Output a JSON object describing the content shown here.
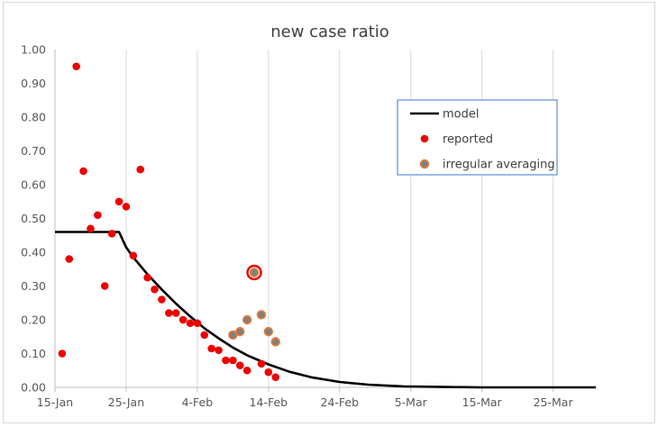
{
  "chart_data": {
    "type": "scatter",
    "title": "new case ratio",
    "xlabel": "",
    "ylabel": "",
    "x_range": [
      "2020-01-15",
      "2020-03-31"
    ],
    "ylim": [
      0,
      1
    ],
    "x_ticks": [
      {
        "date": "2020-01-15",
        "label": "15-Jan"
      },
      {
        "date": "2020-01-25",
        "label": "25-Jan"
      },
      {
        "date": "2020-02-04",
        "label": "4-Feb"
      },
      {
        "date": "2020-02-14",
        "label": "14-Feb"
      },
      {
        "date": "2020-02-24",
        "label": "24-Feb"
      },
      {
        "date": "2020-03-05",
        "label": "5-Mar"
      },
      {
        "date": "2020-03-15",
        "label": "15-Mar"
      },
      {
        "date": "2020-03-25",
        "label": "25-Mar"
      }
    ],
    "y_ticks": [
      "0.00",
      "0.10",
      "0.20",
      "0.30",
      "0.40",
      "0.50",
      "0.60",
      "0.70",
      "0.80",
      "0.90",
      "1.00"
    ],
    "grid": {
      "vertical": true,
      "horizontal": false
    },
    "legend_position": "top-right",
    "series": [
      {
        "name": "model",
        "kind": "line",
        "color": "#000000",
        "points": [
          {
            "x": "2020-01-15",
            "y": 0.46
          },
          {
            "x": "2020-01-24",
            "y": 0.46
          },
          {
            "x": "2020-01-25",
            "y": 0.415
          },
          {
            "x": "2020-01-26",
            "y": 0.385
          },
          {
            "x": "2020-01-28",
            "y": 0.335
          },
          {
            "x": "2020-01-30",
            "y": 0.29
          },
          {
            "x": "2020-02-01",
            "y": 0.248
          },
          {
            "x": "2020-02-03",
            "y": 0.21
          },
          {
            "x": "2020-02-05",
            "y": 0.175
          },
          {
            "x": "2020-02-07",
            "y": 0.145
          },
          {
            "x": "2020-02-09",
            "y": 0.118
          },
          {
            "x": "2020-02-11",
            "y": 0.095
          },
          {
            "x": "2020-02-14",
            "y": 0.068
          },
          {
            "x": "2020-02-17",
            "y": 0.046
          },
          {
            "x": "2020-02-20",
            "y": 0.03
          },
          {
            "x": "2020-02-24",
            "y": 0.016
          },
          {
            "x": "2020-02-28",
            "y": 0.008
          },
          {
            "x": "2020-03-04",
            "y": 0.003
          },
          {
            "x": "2020-03-10",
            "y": 0.001
          },
          {
            "x": "2020-03-15",
            "y": 0.0
          },
          {
            "x": "2020-03-31",
            "y": 0.0
          }
        ]
      },
      {
        "name": "reported",
        "kind": "scatter",
        "color": "#ee0000",
        "points": [
          {
            "x": "2020-01-16",
            "y": 0.1
          },
          {
            "x": "2020-01-17",
            "y": 0.38
          },
          {
            "x": "2020-01-18",
            "y": 0.95
          },
          {
            "x": "2020-01-19",
            "y": 0.64
          },
          {
            "x": "2020-01-20",
            "y": 0.47
          },
          {
            "x": "2020-01-21",
            "y": 0.51
          },
          {
            "x": "2020-01-22",
            "y": 0.3
          },
          {
            "x": "2020-01-23",
            "y": 0.455
          },
          {
            "x": "2020-01-24",
            "y": 0.55
          },
          {
            "x": "2020-01-25",
            "y": 0.535
          },
          {
            "x": "2020-01-26",
            "y": 0.39
          },
          {
            "x": "2020-01-27",
            "y": 0.645
          },
          {
            "x": "2020-01-28",
            "y": 0.325
          },
          {
            "x": "2020-01-29",
            "y": 0.29
          },
          {
            "x": "2020-01-30",
            "y": 0.26
          },
          {
            "x": "2020-01-31",
            "y": 0.22
          },
          {
            "x": "2020-02-01",
            "y": 0.22
          },
          {
            "x": "2020-02-02",
            "y": 0.2
          },
          {
            "x": "2020-02-03",
            "y": 0.19
          },
          {
            "x": "2020-02-04",
            "y": 0.19
          },
          {
            "x": "2020-02-05",
            "y": 0.155
          },
          {
            "x": "2020-02-06",
            "y": 0.115
          },
          {
            "x": "2020-02-07",
            "y": 0.11
          },
          {
            "x": "2020-02-08",
            "y": 0.08
          },
          {
            "x": "2020-02-09",
            "y": 0.08
          },
          {
            "x": "2020-02-10",
            "y": 0.065
          },
          {
            "x": "2020-02-11",
            "y": 0.05
          },
          {
            "x": "2020-02-13",
            "y": 0.07
          },
          {
            "x": "2020-02-14",
            "y": 0.045
          },
          {
            "x": "2020-02-15",
            "y": 0.03
          }
        ]
      },
      {
        "name": "irregular averaging",
        "kind": "scatter",
        "color": "#7f7f7f",
        "edge_color": "#e07b39",
        "points": [
          {
            "x": "2020-02-09",
            "y": 0.155
          },
          {
            "x": "2020-02-10",
            "y": 0.165
          },
          {
            "x": "2020-02-11",
            "y": 0.2
          },
          {
            "x": "2020-02-12",
            "y": 0.34,
            "highlighted": true
          },
          {
            "x": "2020-02-13",
            "y": 0.215
          },
          {
            "x": "2020-02-14",
            "y": 0.165
          },
          {
            "x": "2020-02-15",
            "y": 0.135
          }
        ]
      }
    ]
  }
}
